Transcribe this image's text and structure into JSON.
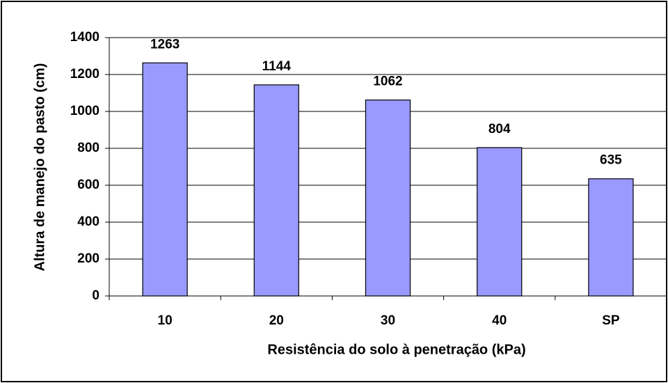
{
  "chart_data": {
    "type": "bar",
    "x_label": "Resistência do solo à penetração (kPa)",
    "y_label": "Altura de manejo do pasto (cm)",
    "categories": [
      "10",
      "20",
      "30",
      "40",
      "SP"
    ],
    "values": [
      1263,
      1144,
      1062,
      804,
      635
    ],
    "color": "#9999ff",
    "ylim": [
      0,
      1400
    ],
    "yticks": [
      0,
      200,
      400,
      600,
      800,
      1000,
      1200,
      1400
    ],
    "grid": true
  }
}
